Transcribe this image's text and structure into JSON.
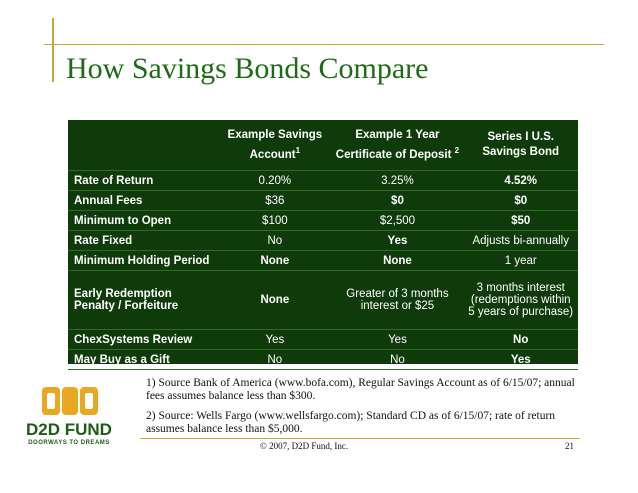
{
  "title": "How Savings Bonds Compare",
  "table": {
    "headers": [
      {
        "text": "",
        "sup": ""
      },
      {
        "text": "Example Savings Account",
        "sup": "1"
      },
      {
        "text": "Example 1 Year Certificate of Deposit",
        "sup": "2"
      },
      {
        "text": "Series I U.S. Savings Bond",
        "sup": ""
      }
    ],
    "rows": [
      {
        "label": "Rate of Return",
        "cells": [
          "0.20%",
          "3.25%",
          "4.52%"
        ],
        "bold": [
          false,
          false,
          true
        ]
      },
      {
        "label": "Annual Fees",
        "cells": [
          "$36",
          "$0",
          "$0"
        ],
        "bold": [
          false,
          true,
          true
        ]
      },
      {
        "label": "Minimum to Open",
        "cells": [
          "$100",
          "$2,500",
          "$50"
        ],
        "bold": [
          false,
          false,
          true
        ]
      },
      {
        "label": "Rate Fixed",
        "cells": [
          "No",
          "Yes",
          "Adjusts bi-annually"
        ],
        "bold": [
          false,
          true,
          false
        ]
      },
      {
        "label": "Minimum Holding Period",
        "cells": [
          "None",
          "None",
          "1 year"
        ],
        "bold": [
          true,
          true,
          false
        ]
      },
      {
        "label": "Early Redemption Penalty / Forfeiture",
        "cells": [
          "None",
          "Greater of 3 months interest or $25",
          "3 months interest (redemptions within 5 years of purchase)"
        ],
        "bold": [
          true,
          false,
          false
        ]
      },
      {
        "label": "ChexSystems Review",
        "cells": [
          "Yes",
          "Yes",
          "No"
        ],
        "bold": [
          false,
          false,
          true
        ]
      },
      {
        "label": "May Buy as a Gift",
        "cells": [
          "No",
          "No",
          "Yes"
        ],
        "bold": [
          false,
          false,
          true
        ]
      }
    ]
  },
  "notes": [
    "1) Source Bank of America (www.bofa.com), Regular Savings Account as of 6/15/07; annual fees assumes balance less than $300.",
    "2) Source: Wells Fargo (www.wellsfargo.com); Standard CD as of 6/15/07; rate of return assumes balance less than $5,000."
  ],
  "logo": {
    "name": "D2D FUND",
    "tagline": "DOORWAYS TO DREAMS",
    "color": "#e8a820"
  },
  "footer": {
    "copyright": "© 2007, D2D Fund, Inc.",
    "page_number": "21"
  },
  "colors": {
    "title": "#1e6b16",
    "table_bg": "#0f3b0b",
    "accent": "#c9a437"
  }
}
